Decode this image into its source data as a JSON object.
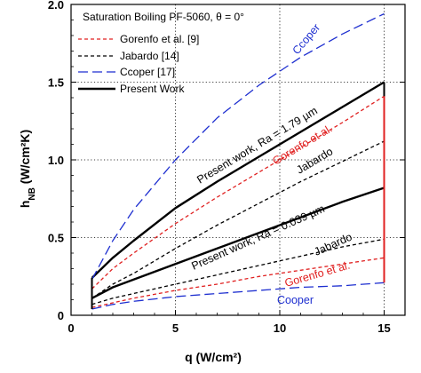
{
  "chart_data": {
    "type": "line",
    "title": "Saturation Boiling  PF-5060, θ = 0°",
    "xlabel": "q (W/cm²)",
    "ylabel": "h_NB (W/cm²K)",
    "ylabel_main": "h",
    "ylabel_sub": "NB",
    "ylabel_rest": " (W/cm²K)",
    "xlim": [
      0,
      16
    ],
    "ylim": [
      0,
      2.0
    ],
    "xticks": [
      0,
      5,
      10,
      15
    ],
    "yticks": [
      0,
      0.5,
      1.0,
      1.5,
      2.0
    ],
    "xtick_labels": [
      "0",
      "5",
      "10",
      "15"
    ],
    "ytick_labels": [
      "0",
      "0.5",
      "1.0",
      "1.5",
      "2.0"
    ],
    "grid": "dotted",
    "legend_position": "top-left",
    "legend": [
      {
        "label": "Gorenfo et al. [9]",
        "color": "#e02020",
        "dash": "short-dash"
      },
      {
        "label": "Jabardo [14]",
        "color": "#000000",
        "dash": "short-dash"
      },
      {
        "label": "Ccoper [17]",
        "color": "#1e2fd0",
        "dash": "long-dash"
      },
      {
        "label": "Present Work",
        "color": "#000000",
        "dash": "solid"
      }
    ],
    "series": [
      {
        "group": "Ra = 1.79 µm",
        "style": "Present Work",
        "color": "#000000",
        "dash": "solid",
        "width": 2.4,
        "x": [
          1.0,
          2,
          3,
          5,
          7,
          9,
          11,
          13,
          15
        ],
        "y": [
          0.24,
          0.37,
          0.48,
          0.69,
          0.86,
          1.02,
          1.18,
          1.34,
          1.5
        ]
      },
      {
        "group": "Ra = 1.79 µm",
        "style": "Gorenfo et al.",
        "color": "#e02020",
        "dash": "short-dash",
        "width": 1.3,
        "x": [
          1.0,
          2,
          3,
          5,
          7,
          9,
          11,
          13,
          15
        ],
        "y": [
          0.17,
          0.3,
          0.4,
          0.59,
          0.76,
          0.92,
          1.08,
          1.24,
          1.41
        ]
      },
      {
        "group": "Ra = 1.79 µm",
        "style": "Jabardo",
        "color": "#000000",
        "dash": "short-dash",
        "width": 1.3,
        "x": [
          1.0,
          2,
          3,
          5,
          7,
          9,
          11,
          13,
          15
        ],
        "y": [
          0.11,
          0.2,
          0.27,
          0.43,
          0.58,
          0.72,
          0.86,
          0.99,
          1.12
        ]
      },
      {
        "group": "Ra = 1.79 µm",
        "style": "Ccoper",
        "color": "#1e2fd0",
        "dash": "long-dash",
        "width": 1.3,
        "x": [
          1.0,
          2,
          3,
          5,
          7,
          9,
          11,
          13,
          15
        ],
        "y": [
          0.23,
          0.48,
          0.68,
          1.0,
          1.27,
          1.48,
          1.66,
          1.81,
          1.94
        ]
      },
      {
        "group": "Ra = 0.039 µm",
        "style": "Present Work",
        "color": "#000000",
        "dash": "solid",
        "width": 2.4,
        "x": [
          1.0,
          2,
          3,
          5,
          7,
          9,
          11,
          13,
          15
        ],
        "y": [
          0.11,
          0.18,
          0.23,
          0.33,
          0.43,
          0.53,
          0.63,
          0.73,
          0.82
        ]
      },
      {
        "group": "Ra = 0.039 µm",
        "style": "Jabardo",
        "color": "#000000",
        "dash": "short-dash",
        "width": 1.3,
        "x": [
          1.0,
          2,
          3,
          5,
          7,
          9,
          11,
          13,
          15
        ],
        "y": [
          0.07,
          0.11,
          0.14,
          0.2,
          0.26,
          0.32,
          0.38,
          0.44,
          0.49
        ]
      },
      {
        "group": "Ra = 0.039 µm",
        "style": "Gorenfo et al.",
        "color": "#e02020",
        "dash": "short-dash",
        "width": 1.3,
        "x": [
          1.0,
          2,
          3,
          5,
          7,
          9,
          11,
          13,
          15
        ],
        "y": [
          0.05,
          0.08,
          0.11,
          0.16,
          0.2,
          0.25,
          0.29,
          0.33,
          0.37
        ]
      },
      {
        "group": "Ra = 0.039 µm",
        "style": "Cooper",
        "color": "#1e2fd0",
        "dash": "long-dash",
        "width": 1.3,
        "x": [
          1.0,
          2,
          3,
          5,
          7,
          9,
          11,
          13,
          15
        ],
        "y": [
          0.04,
          0.07,
          0.09,
          0.12,
          0.14,
          0.16,
          0.18,
          0.19,
          0.21
        ]
      }
    ],
    "vertical_connectors": [
      {
        "x": 15,
        "y_from": 0.82,
        "y_to": 1.5,
        "color": "#000000"
      },
      {
        "x": 15,
        "y_from": 0.21,
        "y_to": 1.41,
        "color": "#e02020"
      },
      {
        "x": 1.0,
        "y_from": 0.04,
        "y_to": 0.24,
        "color": "#000000"
      }
    ],
    "annotations": [
      {
        "text": "Ccoper",
        "color": "#1e2fd0"
      },
      {
        "text": "Present work, Ra = 1.79 µm",
        "color": "#000000"
      },
      {
        "text": "Gorenfo et al.",
        "color": "#e02020"
      },
      {
        "text": "Jabardo",
        "color": "#000000"
      },
      {
        "text": "Present work, Ra = 0.039 µm",
        "color": "#000000"
      },
      {
        "text": "Jabardo",
        "color": "#000000"
      },
      {
        "text": "Gorenfo et al.",
        "color": "#e02020"
      },
      {
        "text": "Cooper",
        "color": "#1e2fd0"
      }
    ]
  }
}
